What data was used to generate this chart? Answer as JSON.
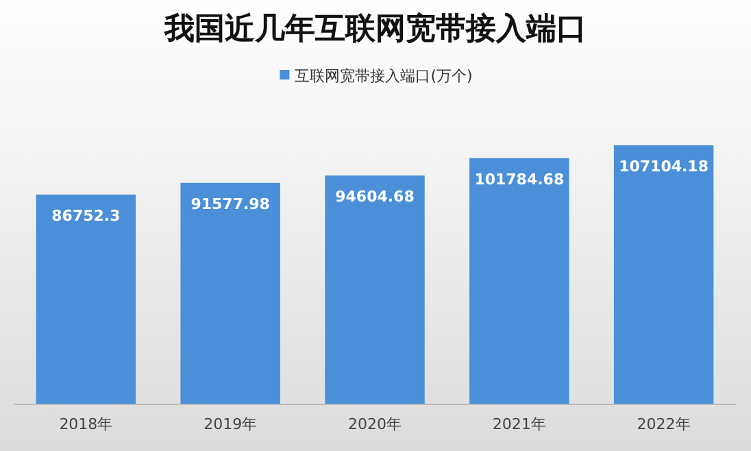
{
  "chart_data": {
    "type": "bar",
    "title": "我国近几年互联网宽带接入端口",
    "categories": [
      "2018年",
      "2019年",
      "2020年",
      "2021年",
      "2022年"
    ],
    "series": [
      {
        "name": "互联网宽带接入端口(万个)",
        "color": "#4a8fd8",
        "values": [
          86752.3,
          91577.98,
          94604.68,
          101784.68,
          107104.18
        ]
      }
    ],
    "data_labels": true,
    "legend": "top"
  }
}
